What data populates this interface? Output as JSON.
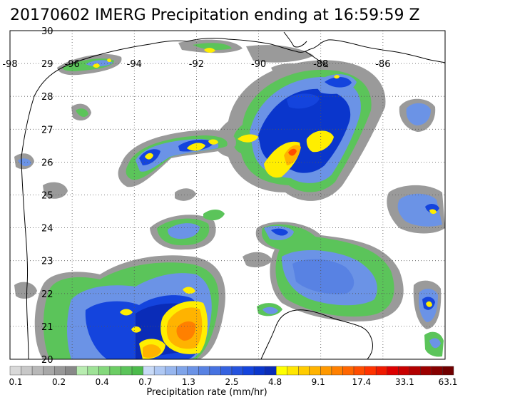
{
  "title": "20170602 IMERG Precipitation ending at 16:59:59 Z",
  "map": {
    "lon_range": [
      -98,
      -84
    ],
    "lat_range": [
      20,
      30
    ],
    "lon_labels": [
      "-98",
      "-96",
      "-94",
      "-92",
      "-90",
      "-88",
      "-86"
    ],
    "lat_labels": [
      "30",
      "29",
      "28",
      "27",
      "26",
      "25",
      "24",
      "23",
      "22",
      "21",
      "20"
    ],
    "grid": true
  },
  "colorbar": {
    "title": "Precipitation rate (mm/hr)",
    "labels": [
      "0.1",
      "0.2",
      "0.4",
      "0.7",
      "1.3",
      "2.5",
      "4.8",
      "9.1",
      "17.4",
      "33.1",
      "63.1"
    ],
    "colors": [
      "#d9d9d9",
      "#c8c8c8",
      "#b8b8b8",
      "#a8a8a8",
      "#989898",
      "#888888",
      "#b8ecb0",
      "#9ee296",
      "#84d87c",
      "#6ccd64",
      "#5bc45a",
      "#4cbb4c",
      "#c8daf7",
      "#afc8f3",
      "#97b6ee",
      "#7fa4e9",
      "#6b93e6",
      "#5882e3",
      "#4672e1",
      "#3562e0",
      "#2553de",
      "#1444dd",
      "#0a36cc",
      "#0a2cb8",
      "#ffff00",
      "#ffe600",
      "#ffcc00",
      "#ffb300",
      "#ff9900",
      "#ff8000",
      "#ff6600",
      "#ff4d00",
      "#ff3300",
      "#f01a00",
      "#dd0000",
      "#c80000",
      "#b20000",
      "#9c0000",
      "#860000",
      "#700000"
    ]
  }
}
